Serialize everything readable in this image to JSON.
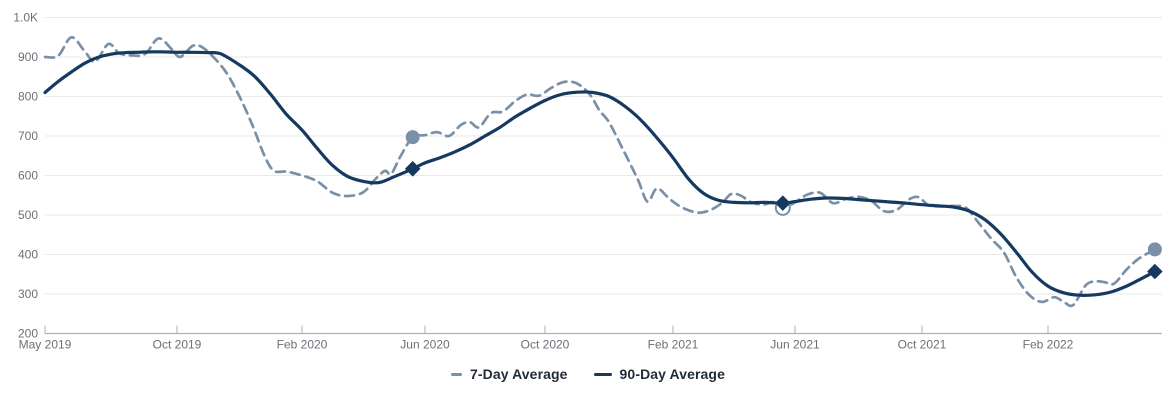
{
  "chart_data": {
    "type": "line",
    "title": "",
    "x_axis": {
      "ticks": [
        {
          "label": "May 2019",
          "m": 0
        },
        {
          "label": "Oct 2019",
          "m": 5
        },
        {
          "label": "Feb 2020",
          "m": 9
        },
        {
          "label": "Jun 2020",
          "m": 13
        },
        {
          "label": "Oct 2020",
          "m": 17
        },
        {
          "label": "Feb 2021",
          "m": 21
        },
        {
          "label": "Jun 2021",
          "m": 25
        },
        {
          "label": "Oct 2021",
          "m": 29
        },
        {
          "label": "Feb 2022",
          "m": 33
        }
      ],
      "note": "m = months since May 2019; data extends to m=36.4 (~mid May 2022)"
    },
    "y_axis": {
      "ticks": [
        {
          "label": "1.0K",
          "v": 1000
        },
        {
          "label": "900",
          "v": 900
        },
        {
          "label": "800",
          "v": 800
        },
        {
          "label": "700",
          "v": 700
        },
        {
          "label": "600",
          "v": 600
        },
        {
          "label": "500",
          "v": 500
        },
        {
          "label": "400",
          "v": 400
        },
        {
          "label": "300",
          "v": 300
        },
        {
          "label": "200",
          "v": 200
        }
      ],
      "range": [
        200,
        1000
      ],
      "grid": true
    },
    "series": [
      {
        "name": "7-Day Average",
        "style": "dashed",
        "color": "#7a90a7",
        "points": [
          [
            0,
            900
          ],
          [
            0.5,
            903
          ],
          [
            1,
            950
          ],
          [
            1.5,
            915
          ],
          [
            1.9,
            888
          ],
          [
            2.4,
            933
          ],
          [
            2.8,
            910
          ],
          [
            3.3,
            904
          ],
          [
            3.8,
            908
          ],
          [
            4.3,
            947
          ],
          [
            4.8,
            920
          ],
          [
            5.1,
            900
          ],
          [
            5.5,
            928
          ],
          [
            5.8,
            925
          ],
          [
            6.2,
            897
          ],
          [
            6.6,
            858
          ],
          [
            7,
            800
          ],
          [
            7.4,
            730
          ],
          [
            7.8,
            650
          ],
          [
            8.1,
            612
          ],
          [
            8.5,
            610
          ],
          [
            9,
            600
          ],
          [
            9.5,
            585
          ],
          [
            10,
            556
          ],
          [
            10.5,
            548
          ],
          [
            11,
            558
          ],
          [
            11.4,
            592
          ],
          [
            11.7,
            612
          ],
          [
            11.9,
            604
          ],
          [
            12.2,
            648
          ],
          [
            12.6,
            697
          ],
          [
            13,
            702
          ],
          [
            13.4,
            710
          ],
          [
            13.8,
            700
          ],
          [
            14.2,
            728
          ],
          [
            14.5,
            735
          ],
          [
            14.8,
            722
          ],
          [
            15.2,
            758
          ],
          [
            15.6,
            762
          ],
          [
            16,
            788
          ],
          [
            16.4,
            805
          ],
          [
            16.8,
            802
          ],
          [
            17.2,
            822
          ],
          [
            17.6,
            837
          ],
          [
            18,
            833
          ],
          [
            18.4,
            805
          ],
          [
            18.7,
            765
          ],
          [
            19,
            735
          ],
          [
            19.4,
            672
          ],
          [
            19.9,
            590
          ],
          [
            20.2,
            534
          ],
          [
            20.5,
            567
          ],
          [
            20.9,
            540
          ],
          [
            21.3,
            519
          ],
          [
            21.8,
            506
          ],
          [
            22.2,
            512
          ],
          [
            22.6,
            530
          ],
          [
            22.9,
            553
          ],
          [
            23.2,
            550
          ],
          [
            23.6,
            531
          ],
          [
            24,
            527
          ],
          [
            24.3,
            533
          ],
          [
            24.6,
            518
          ],
          [
            25,
            532
          ],
          [
            25.4,
            552
          ],
          [
            25.8,
            556
          ],
          [
            26.2,
            530
          ],
          [
            26.6,
            541
          ],
          [
            27,
            546
          ],
          [
            27.4,
            536
          ],
          [
            27.8,
            510
          ],
          [
            28.2,
            513
          ],
          [
            28.6,
            540
          ],
          [
            28.9,
            545
          ],
          [
            29.2,
            525
          ],
          [
            29.6,
            522
          ],
          [
            30,
            523
          ],
          [
            30.4,
            518
          ],
          [
            30.8,
            480
          ],
          [
            31.2,
            440
          ],
          [
            31.6,
            405
          ],
          [
            32,
            342
          ],
          [
            32.4,
            298
          ],
          [
            32.8,
            280
          ],
          [
            33.2,
            292
          ],
          [
            33.5,
            280
          ],
          [
            33.8,
            272
          ],
          [
            34.2,
            322
          ],
          [
            34.5,
            332
          ],
          [
            34.8,
            330
          ],
          [
            35.1,
            326
          ],
          [
            35.5,
            362
          ],
          [
            35.9,
            390
          ],
          [
            36.4,
            413
          ]
        ],
        "markers": [
          {
            "m": 12.6,
            "v": 697,
            "shape": "circle",
            "variant": "filled"
          },
          {
            "m": 24.6,
            "v": 518,
            "shape": "circle",
            "variant": "hollow"
          },
          {
            "m": 36.4,
            "v": 413,
            "shape": "circle",
            "variant": "filled"
          }
        ]
      },
      {
        "name": "90-Day Average",
        "style": "solid",
        "color": "#16395f",
        "points": [
          [
            0,
            810
          ],
          [
            0.5,
            838
          ],
          [
            1,
            862
          ],
          [
            1.5,
            884
          ],
          [
            2,
            899
          ],
          [
            2.5,
            907
          ],
          [
            3,
            911
          ],
          [
            3.5,
            912
          ],
          [
            4,
            913
          ],
          [
            4.5,
            913
          ],
          [
            5,
            912
          ],
          [
            5.5,
            912
          ],
          [
            6,
            911
          ],
          [
            6.4,
            908
          ],
          [
            7,
            880
          ],
          [
            7.5,
            850
          ],
          [
            8,
            805
          ],
          [
            8.5,
            755
          ],
          [
            9,
            715
          ],
          [
            9.5,
            668
          ],
          [
            10,
            625
          ],
          [
            10.5,
            597
          ],
          [
            11,
            585
          ],
          [
            11.5,
            582
          ],
          [
            12,
            597
          ],
          [
            12.6,
            617
          ],
          [
            13,
            632
          ],
          [
            13.5,
            645
          ],
          [
            14,
            660
          ],
          [
            14.5,
            678
          ],
          [
            15,
            700
          ],
          [
            15.5,
            722
          ],
          [
            16,
            748
          ],
          [
            16.5,
            770
          ],
          [
            17,
            790
          ],
          [
            17.5,
            805
          ],
          [
            18,
            811
          ],
          [
            18.5,
            810
          ],
          [
            19,
            800
          ],
          [
            19.5,
            775
          ],
          [
            20,
            740
          ],
          [
            20.5,
            695
          ],
          [
            21,
            645
          ],
          [
            21.5,
            592
          ],
          [
            22,
            555
          ],
          [
            22.5,
            537
          ],
          [
            23,
            532
          ],
          [
            23.5,
            531
          ],
          [
            24,
            532
          ],
          [
            24.6,
            530
          ],
          [
            25,
            534
          ],
          [
            25.5,
            540
          ],
          [
            26,
            543
          ],
          [
            26.5,
            542
          ],
          [
            27,
            539
          ],
          [
            27.5,
            536
          ],
          [
            28,
            533
          ],
          [
            28.5,
            530
          ],
          [
            29,
            526
          ],
          [
            29.5,
            523
          ],
          [
            30,
            520
          ],
          [
            30.5,
            510
          ],
          [
            31,
            488
          ],
          [
            31.5,
            452
          ],
          [
            32,
            405
          ],
          [
            32.5,
            355
          ],
          [
            33,
            320
          ],
          [
            33.5,
            303
          ],
          [
            34,
            297
          ],
          [
            34.5,
            298
          ],
          [
            35,
            305
          ],
          [
            35.5,
            320
          ],
          [
            36,
            340
          ],
          [
            36.4,
            357
          ]
        ],
        "markers": [
          {
            "m": 12.6,
            "v": 617,
            "shape": "diamond",
            "variant": "filled"
          },
          {
            "m": 24.6,
            "v": 530,
            "shape": "diamond",
            "variant": "filled"
          },
          {
            "m": 36.4,
            "v": 357,
            "shape": "diamond",
            "variant": "filled"
          }
        ]
      }
    ],
    "legend": {
      "position": "bottom-center",
      "items": [
        {
          "label": "7-Day Average"
        },
        {
          "label": "90-Day Average"
        }
      ]
    }
  },
  "colors": {
    "dashed_series": "#7a90a7",
    "solid_series": "#16395f",
    "grid_line": "#e8e9ea",
    "axis_line": "#a9b3bd",
    "tick_label": "#6b7077",
    "legend_text": "#1f2b38",
    "background": "#ffffff"
  }
}
